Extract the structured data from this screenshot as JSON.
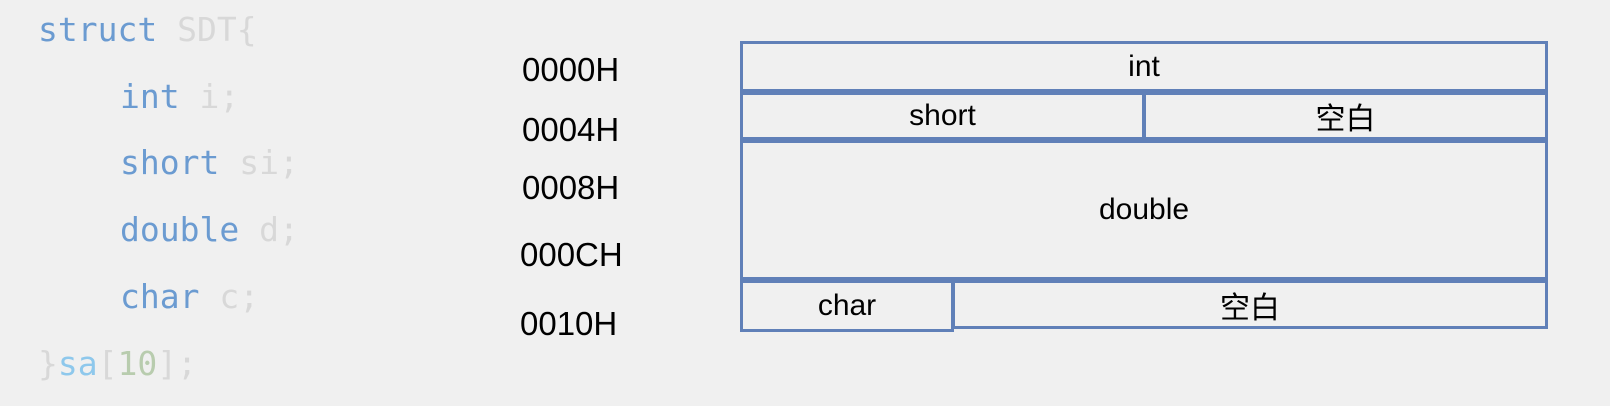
{
  "code": {
    "line1": {
      "keyword": "struct",
      "name": "SDT{"
    },
    "line2": {
      "type": "int",
      "field": "i;"
    },
    "line3": {
      "type": "short",
      "field": "si;"
    },
    "line4": {
      "type": "double",
      "field": "d;"
    },
    "line5": {
      "type": "char",
      "field": "c;"
    },
    "line6": {
      "brace": "}",
      "var": "sa",
      "open": "[",
      "num": "10",
      "close": "];"
    }
  },
  "addresses": [
    "0000H",
    "0004H",
    "0008H",
    "000CH",
    "0010H"
  ],
  "memory": {
    "int": "int",
    "short": "short",
    "pad1": "空白",
    "double": "double",
    "char": "char",
    "pad2": "空白"
  },
  "colors": {
    "border": "#6080b8",
    "keyword": "#6b9bd1",
    "dim": "#d8d8d8"
  }
}
